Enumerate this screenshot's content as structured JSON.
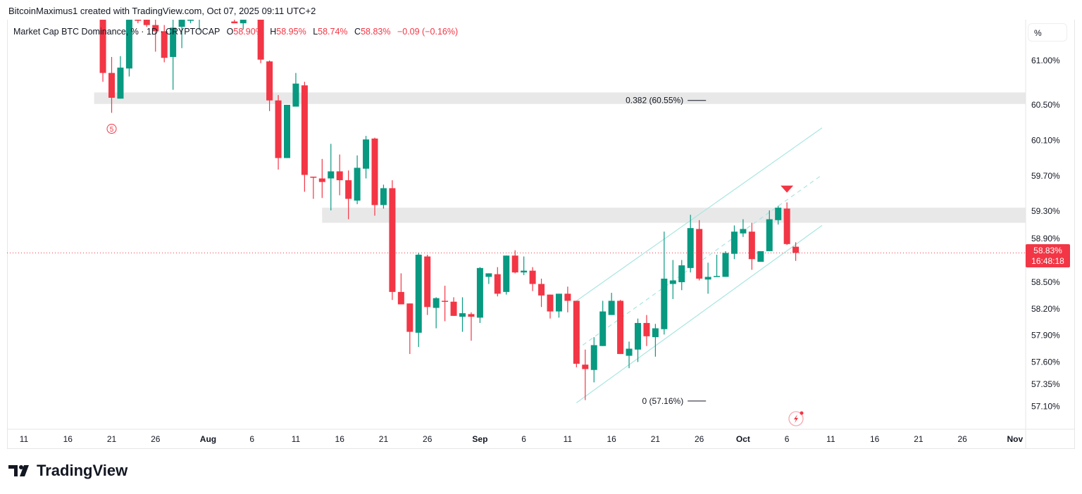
{
  "credit": "BitcoinMaximus1 created with TradingView.com, Oct 07, 2025 09:11 UTC+2",
  "legend": {
    "symbol": "Market Cap BTC Dominance, % · 1D · CRYPTOCAP",
    "o_label": "O",
    "o": "58.90%",
    "h_label": "H",
    "h": "58.95%",
    "l_label": "L",
    "l": "58.74%",
    "c_label": "C",
    "c": "58.83%",
    "change": "−0.09 (−0.16%)"
  },
  "scale_button": "%",
  "price_tag": {
    "price": "58.83%",
    "countdown": "16:48:18"
  },
  "brand": "TradingView",
  "colors": {
    "up": "#089981",
    "down": "#f23645",
    "zone": "#e6e6e6",
    "channel": "#a8e6e0",
    "text": "#131722"
  },
  "chart_data": {
    "type": "candlestick",
    "title": "Market Cap BTC Dominance, % · 1D · CRYPTOCAP",
    "ylim": [
      57.0,
      61.5
    ],
    "y_ticks": [
      "61.00%",
      "60.50%",
      "60.10%",
      "59.70%",
      "59.30%",
      "58.90%",
      "58.50%",
      "58.20%",
      "57.90%",
      "57.60%",
      "57.35%",
      "57.10%"
    ],
    "y_tick_values": [
      61.0,
      60.5,
      60.1,
      59.7,
      59.3,
      58.9,
      58.5,
      58.2,
      57.9,
      57.6,
      57.35,
      57.1
    ],
    "x_ticks": [
      {
        "label": "11",
        "date": "2025-07-11"
      },
      {
        "label": "16",
        "date": "2025-07-16"
      },
      {
        "label": "21",
        "date": "2025-07-21"
      },
      {
        "label": "26",
        "date": "2025-07-26"
      },
      {
        "label": "Aug",
        "date": "2025-08-01",
        "major": true
      },
      {
        "label": "6",
        "date": "2025-08-06"
      },
      {
        "label": "11",
        "date": "2025-08-11"
      },
      {
        "label": "16",
        "date": "2025-08-16"
      },
      {
        "label": "21",
        "date": "2025-08-21"
      },
      {
        "label": "26",
        "date": "2025-08-26"
      },
      {
        "label": "Sep",
        "date": "2025-09-01",
        "major": true
      },
      {
        "label": "6",
        "date": "2025-09-06"
      },
      {
        "label": "11",
        "date": "2025-09-11"
      },
      {
        "label": "16",
        "date": "2025-09-16"
      },
      {
        "label": "21",
        "date": "2025-09-21"
      },
      {
        "label": "26",
        "date": "2025-09-26"
      },
      {
        "label": "Oct",
        "date": "2025-10-01",
        "major": true
      },
      {
        "label": "6",
        "date": "2025-10-06"
      },
      {
        "label": "11",
        "date": "2025-10-11"
      },
      {
        "label": "16",
        "date": "2025-10-16"
      },
      {
        "label": "21",
        "date": "2025-10-21"
      },
      {
        "label": "26",
        "date": "2025-10-26"
      },
      {
        "label": "Nov",
        "date": "2025-11-01",
        "major": true
      }
    ],
    "columns": [
      "date",
      "open",
      "high",
      "low",
      "close"
    ],
    "candles": [
      [
        "2025-07-20",
        61.46,
        61.5,
        60.76,
        60.86
      ],
      [
        "2025-07-21",
        60.86,
        61.04,
        60.41,
        60.58
      ],
      [
        "2025-07-22",
        60.57,
        61.05,
        60.57,
        60.92
      ],
      [
        "2025-07-23",
        60.91,
        61.5,
        60.82,
        61.46
      ],
      [
        "2025-07-24",
        61.46,
        61.5,
        61.42,
        61.45
      ],
      [
        "2025-07-25",
        61.46,
        61.5,
        61.38,
        61.4
      ],
      [
        "2025-07-26",
        61.4,
        61.46,
        61.1,
        61.33
      ],
      [
        "2025-07-27",
        61.33,
        61.4,
        60.98,
        61.03
      ],
      [
        "2025-07-28",
        61.04,
        61.46,
        60.67,
        61.37
      ],
      [
        "2025-07-29",
        61.38,
        61.5,
        61.14,
        61.46
      ],
      [
        "2025-07-30",
        61.45,
        61.5,
        61.42,
        61.46
      ],
      [
        "2025-07-31",
        61.48,
        61.6,
        61.34,
        61.55
      ],
      [
        "2025-08-04",
        61.44,
        61.5,
        61.42,
        61.42
      ],
      [
        "2025-08-05",
        61.42,
        61.5,
        61.35,
        61.46
      ],
      [
        "2025-08-07",
        61.5,
        61.55,
        60.97,
        61.01
      ],
      [
        "2025-08-08",
        60.99,
        61.0,
        60.43,
        60.55
      ],
      [
        "2025-08-09",
        60.55,
        60.61,
        59.77,
        59.9
      ],
      [
        "2025-08-10",
        59.9,
        60.5,
        59.9,
        60.5
      ],
      [
        "2025-08-11",
        60.48,
        60.86,
        60.48,
        60.74
      ],
      [
        "2025-08-12",
        60.72,
        60.76,
        59.52,
        59.71
      ],
      [
        "2025-08-13",
        59.69,
        59.69,
        59.44,
        59.68
      ],
      [
        "2025-08-14",
        59.67,
        59.89,
        59.45,
        59.63
      ],
      [
        "2025-08-15",
        59.67,
        60.06,
        59.31,
        59.75
      ],
      [
        "2025-08-16",
        59.75,
        59.94,
        59.48,
        59.65
      ],
      [
        "2025-08-17",
        59.65,
        59.76,
        59.21,
        59.44
      ],
      [
        "2025-08-18",
        59.42,
        59.93,
        59.38,
        59.79
      ],
      [
        "2025-08-19",
        59.78,
        60.15,
        59.67,
        60.11
      ],
      [
        "2025-08-20",
        60.12,
        60.13,
        59.25,
        59.37
      ],
      [
        "2025-08-21",
        59.37,
        59.6,
        59.33,
        59.56
      ],
      [
        "2025-08-22",
        59.56,
        59.65,
        58.3,
        58.39
      ],
      [
        "2025-08-23",
        58.39,
        58.6,
        58.25,
        58.25
      ],
      [
        "2025-08-24",
        58.26,
        58.26,
        57.69,
        57.94
      ],
      [
        "2025-08-25",
        57.93,
        58.83,
        57.77,
        58.81
      ],
      [
        "2025-08-26",
        58.79,
        58.81,
        58.13,
        58.22
      ],
      [
        "2025-08-27",
        58.21,
        58.33,
        57.98,
        58.32
      ],
      [
        "2025-08-28",
        58.29,
        58.46,
        58.06,
        58.28
      ],
      [
        "2025-08-29",
        58.28,
        58.33,
        58.12,
        58.12
      ],
      [
        "2025-08-30",
        58.11,
        58.33,
        57.94,
        58.15
      ],
      [
        "2025-08-31",
        58.14,
        58.16,
        57.84,
        58.11
      ],
      [
        "2025-09-01",
        58.1,
        58.67,
        58.04,
        58.66
      ],
      [
        "2025-09-02",
        58.56,
        58.6,
        58.48,
        58.6
      ],
      [
        "2025-09-03",
        58.59,
        58.67,
        58.34,
        58.37
      ],
      [
        "2025-09-04",
        58.39,
        58.8,
        58.36,
        58.8
      ],
      [
        "2025-09-05",
        58.8,
        58.86,
        58.6,
        58.61
      ],
      [
        "2025-09-06",
        58.61,
        58.79,
        58.58,
        58.63
      ],
      [
        "2025-09-07",
        58.63,
        58.67,
        58.4,
        58.48
      ],
      [
        "2025-09-08",
        58.48,
        58.54,
        58.22,
        58.35
      ],
      [
        "2025-09-09",
        58.36,
        58.36,
        58.09,
        58.17
      ],
      [
        "2025-09-10",
        58.17,
        58.37,
        58.1,
        58.37
      ],
      [
        "2025-09-11",
        58.37,
        58.45,
        58.16,
        58.29
      ],
      [
        "2025-09-12",
        58.29,
        58.29,
        57.54,
        57.58
      ],
      [
        "2025-09-13",
        57.57,
        57.74,
        57.17,
        57.52
      ],
      [
        "2025-09-14",
        57.51,
        57.88,
        57.37,
        57.79
      ],
      [
        "2025-09-15",
        57.78,
        58.29,
        57.78,
        58.17
      ],
      [
        "2025-09-16",
        58.13,
        58.38,
        58.13,
        58.29
      ],
      [
        "2025-09-17",
        58.29,
        58.3,
        57.69,
        57.69
      ],
      [
        "2025-09-18",
        57.67,
        57.83,
        57.53,
        57.75
      ],
      [
        "2025-09-19",
        57.74,
        58.09,
        57.6,
        58.04
      ],
      [
        "2025-09-20",
        58.04,
        58.13,
        57.78,
        57.89
      ],
      [
        "2025-09-21",
        57.88,
        58.03,
        57.66,
        57.98
      ],
      [
        "2025-09-22",
        57.97,
        59.07,
        57.91,
        58.54
      ],
      [
        "2025-09-23",
        58.48,
        58.75,
        58.31,
        58.52
      ],
      [
        "2025-09-24",
        58.5,
        58.75,
        58.41,
        58.69
      ],
      [
        "2025-09-25",
        58.66,
        59.26,
        58.61,
        59.11
      ],
      [
        "2025-09-26",
        59.1,
        59.2,
        58.52,
        58.54
      ],
      [
        "2025-09-27",
        58.53,
        58.72,
        58.37,
        58.56
      ],
      [
        "2025-09-28",
        58.56,
        58.81,
        58.56,
        58.57
      ],
      [
        "2025-09-29",
        58.56,
        58.85,
        58.56,
        58.83
      ],
      [
        "2025-09-30",
        58.82,
        59.14,
        58.76,
        59.07
      ],
      [
        "2025-10-01",
        59.05,
        59.21,
        59.01,
        59.1
      ],
      [
        "2025-10-02",
        59.07,
        59.17,
        58.64,
        58.76
      ],
      [
        "2025-10-03",
        58.73,
        58.85,
        58.73,
        58.85
      ],
      [
        "2025-10-04",
        58.85,
        59.31,
        58.85,
        59.21
      ],
      [
        "2025-10-05",
        59.2,
        59.36,
        59.15,
        59.34
      ],
      [
        "2025-10-06",
        59.33,
        59.4,
        58.92,
        58.93
      ],
      [
        "2025-10-07",
        58.9,
        58.95,
        58.74,
        58.83
      ]
    ],
    "last_price": 58.83,
    "zones": [
      {
        "from": "2025-07-19",
        "top": 60.64,
        "bottom": 60.51,
        "label": "0.382 (60.55%)",
        "label_date": "2025-09-25",
        "label_price": 60.55
      },
      {
        "from": "2025-08-14",
        "top": 59.34,
        "bottom": 59.17
      }
    ],
    "fib_zero": {
      "label": "0 (57.16%)",
      "date": "2025-09-25",
      "price": 57.16
    },
    "channel": [
      {
        "name": "upper",
        "from": [
          "2025-09-12",
          58.29
        ],
        "to": [
          "2025-10-10",
          60.24
        ],
        "dashed": false
      },
      {
        "name": "middle",
        "from": [
          "2025-09-12",
          57.74
        ],
        "to": [
          "2025-10-10",
          59.71
        ],
        "dashed": true
      },
      {
        "name": "lower",
        "from": [
          "2025-09-12",
          57.14
        ],
        "to": [
          "2025-10-10",
          59.14
        ],
        "dashed": false
      }
    ],
    "markers": [
      {
        "type": "sell-arrow",
        "date": "2025-10-06",
        "price": 59.55
      },
      {
        "type": "wave-label",
        "text": "5",
        "date": "2025-07-21",
        "price": 60.23
      }
    ]
  }
}
